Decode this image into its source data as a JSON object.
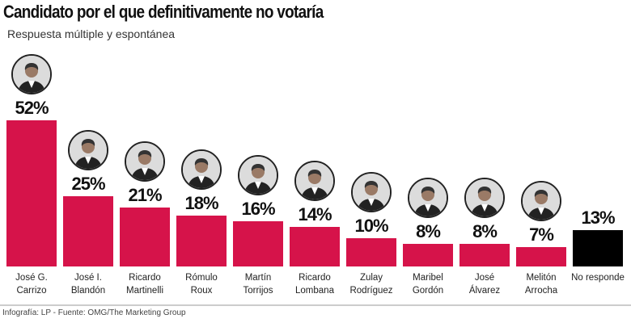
{
  "chart_data": {
    "type": "bar",
    "title": "Candidato por el que definitivamente no votaría",
    "subtitle": "Respuesta múltiple y espontánea",
    "categories": [
      [
        "José G.",
        "Carrizo"
      ],
      [
        "José I.",
        "Blandón"
      ],
      [
        "Ricardo",
        "Martinelli"
      ],
      [
        "Rómulo",
        "Roux"
      ],
      [
        "Martín",
        "Torrijos"
      ],
      [
        "Ricardo",
        "Lombana"
      ],
      [
        "Zulay",
        "Rodríguez"
      ],
      [
        "Maribel",
        "Gordón"
      ],
      [
        "José",
        "Álvarez"
      ],
      [
        "Melitón",
        "Arrocha"
      ],
      [
        "No responde"
      ]
    ],
    "values": [
      52,
      25,
      21,
      18,
      16,
      14,
      10,
      8,
      8,
      7,
      13
    ],
    "value_labels": [
      "52%",
      "25%",
      "21%",
      "18%",
      "16%",
      "14%",
      "10%",
      "8%",
      "8%",
      "7%",
      "13%"
    ],
    "has_photo": [
      true,
      true,
      true,
      true,
      true,
      true,
      true,
      true,
      true,
      true,
      false
    ],
    "colors": {
      "candidate": "#d6134a",
      "no_response": "#000000"
    },
    "ylim": [
      0,
      52
    ],
    "grid": false,
    "source": "Infografía: LP - Fuente: OMG/The Marketing Group"
  }
}
